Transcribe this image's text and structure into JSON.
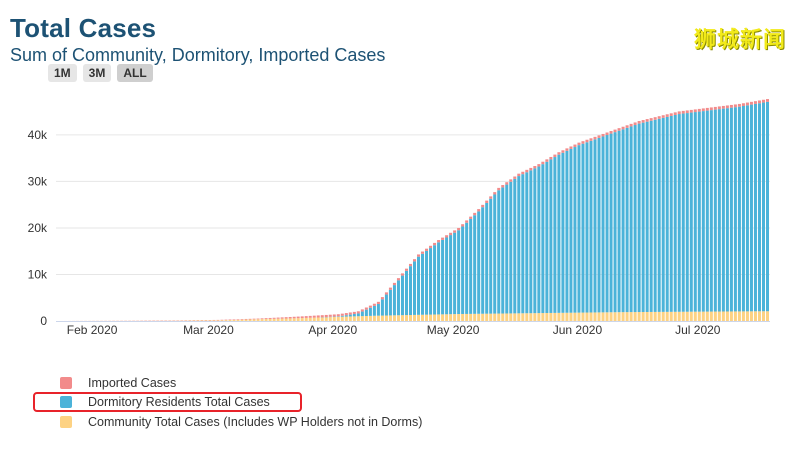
{
  "header": {
    "title": "Total Cases",
    "subtitle": "Sum of Community, Dormitory, Imported Cases",
    "watermark": "狮城新闻"
  },
  "range_buttons": [
    {
      "label": "1M"
    },
    {
      "label": "3M"
    },
    {
      "label": "ALL",
      "active": true
    }
  ],
  "colors": {
    "imported": "#f28b8b",
    "dormitory": "#4bb3d9",
    "community": "#fdd283",
    "highlight": "#e8232a"
  },
  "chart_data": {
    "type": "bar",
    "stacked": true,
    "title": "Total Cases",
    "subtitle": "Sum of Community, Dormitory, Imported Cases",
    "x_start": "2020-01-23",
    "x_end": "2020-07-18",
    "x_ticks": [
      "Feb 2020",
      "Mar 2020",
      "Apr 2020",
      "May 2020",
      "Jun 2020",
      "Jul 2020"
    ],
    "y_ticks": [
      "0",
      "10k",
      "20k",
      "30k",
      "40k"
    ],
    "ylim": [
      0,
      47500
    ],
    "grid": true,
    "legend_position": "bottom-left",
    "series": [
      {
        "name": "Community Total Cases (Includes WP Holders not in Dorms)",
        "key": "community",
        "anchors": [
          [
            0,
            0
          ],
          [
            20,
            30
          ],
          [
            40,
            150
          ],
          [
            60,
            600
          ],
          [
            70,
            900
          ],
          [
            80,
            1150
          ],
          [
            100,
            1500
          ],
          [
            120,
            1700
          ],
          [
            140,
            1900
          ],
          [
            177,
            2100
          ]
        ]
      },
      {
        "name": "Dormitory Residents Total Cases",
        "key": "dormitory",
        "anchors": [
          [
            0,
            0
          ],
          [
            65,
            0
          ],
          [
            70,
            100
          ],
          [
            75,
            600
          ],
          [
            80,
            2500
          ],
          [
            85,
            7500
          ],
          [
            90,
            12500
          ],
          [
            95,
            15500
          ],
          [
            100,
            18000
          ],
          [
            105,
            22000
          ],
          [
            110,
            26500
          ],
          [
            115,
            29500
          ],
          [
            120,
            31500
          ],
          [
            125,
            34000
          ],
          [
            130,
            36000
          ],
          [
            135,
            37500
          ],
          [
            140,
            39000
          ],
          [
            145,
            40500
          ],
          [
            150,
            41500
          ],
          [
            155,
            42500
          ],
          [
            160,
            43000
          ],
          [
            165,
            43500
          ],
          [
            170,
            44000
          ],
          [
            177,
            45000
          ]
        ]
      },
      {
        "name": "Imported Cases",
        "key": "imported",
        "anchors": [
          [
            0,
            0
          ],
          [
            10,
            5
          ],
          [
            30,
            20
          ],
          [
            50,
            150
          ],
          [
            65,
            450
          ],
          [
            177,
            600
          ]
        ]
      }
    ]
  },
  "legend": [
    {
      "label": "Imported Cases",
      "key": "imported"
    },
    {
      "label": "Dormitory Residents Total Cases",
      "key": "dormitory"
    },
    {
      "label": "Community Total Cases (Includes WP Holders not in Dorms)",
      "key": "community"
    }
  ]
}
